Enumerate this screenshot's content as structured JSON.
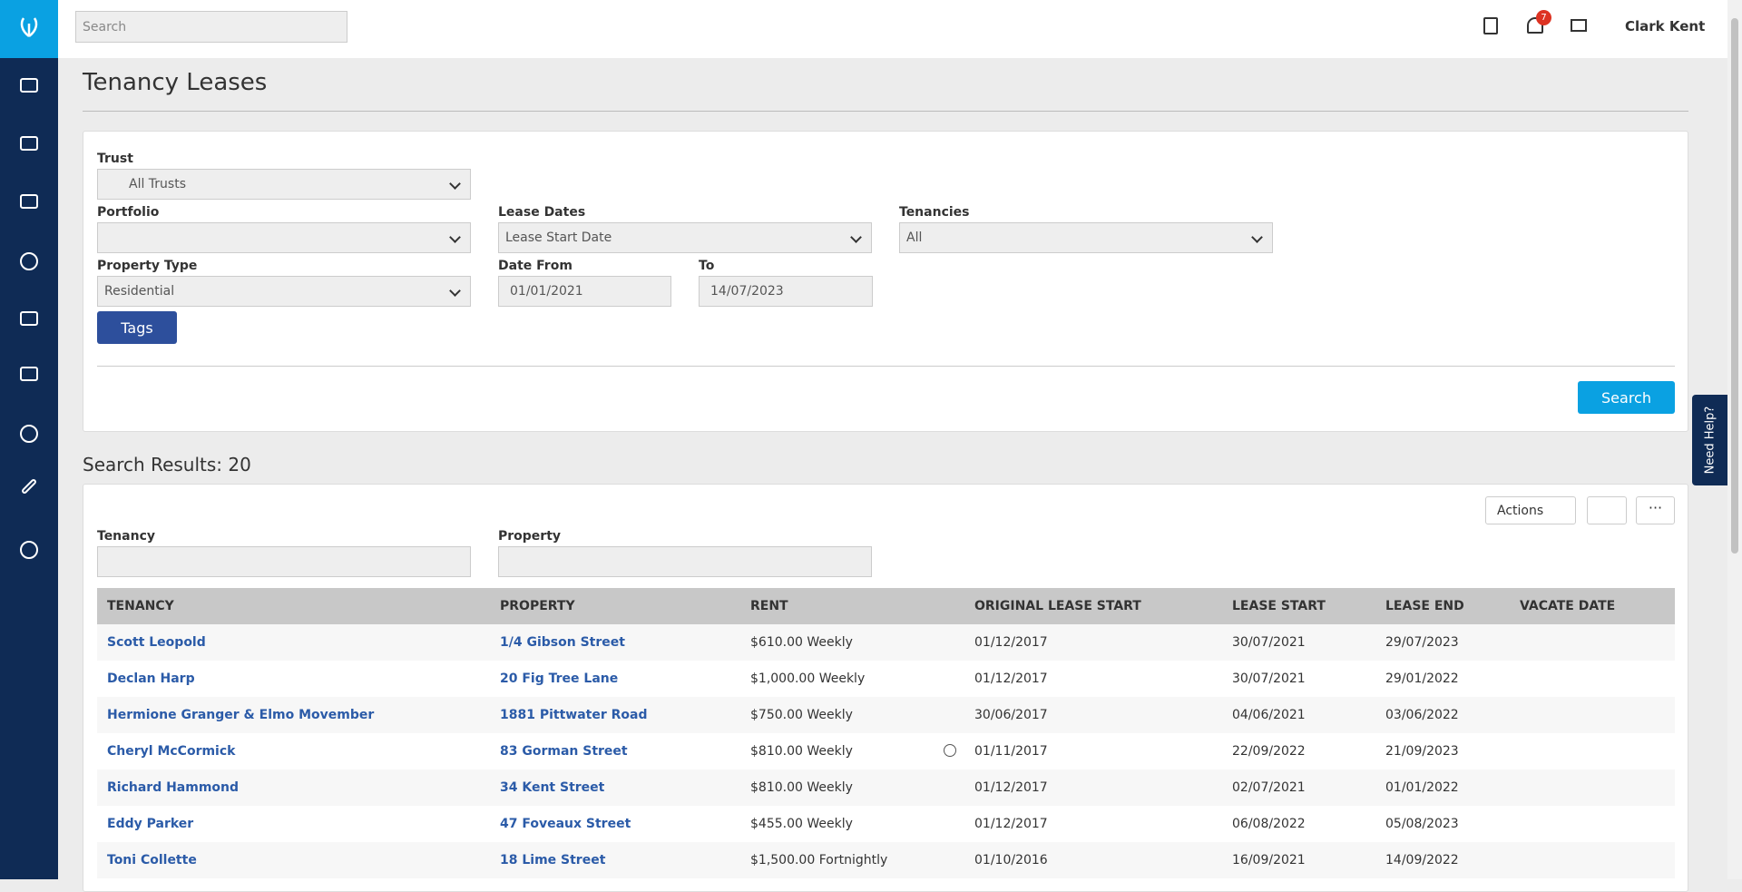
{
  "header": {
    "search_placeholder": "Search",
    "notifications": "7",
    "user": "Clark Kent"
  },
  "page": {
    "title": "Tenancy Leases"
  },
  "filters": {
    "trust": {
      "label": "Trust",
      "value": "All Trusts"
    },
    "portfolio": {
      "label": "Portfolio"
    },
    "lease_dates": {
      "label": "Lease Dates",
      "value": "Lease Start Date"
    },
    "tenancies": {
      "label": "Tenancies",
      "value": "All"
    },
    "property_type": {
      "label": "Property Type",
      "value": "Residential"
    },
    "date_from": {
      "label": "Date From",
      "value": "01/01/2021"
    },
    "date_to": {
      "label": "To",
      "value": "14/07/2023"
    },
    "tags_button": "Tags",
    "search_button": "Search"
  },
  "results": {
    "heading": "Search Results: 20",
    "actions": "Actions",
    "filters": {
      "tenancy": "Tenancy",
      "property": "Property"
    }
  },
  "table": {
    "columns": [
      "TENANCY",
      "PROPERTY",
      "RENT",
      "ORIGINAL LEASE START",
      "LEASE START",
      "LEASE END",
      "VACATE DATE"
    ],
    "rows": [
      [
        "Scott Leopold",
        "1/4 Gibson Street",
        "$610.00 Weekly",
        "01/12/2017",
        "30/07/2021",
        "29/07/2023"
      ],
      [
        "Declan Harp",
        "20 Fig Tree Lane",
        "$1,000.00 Weekly",
        "01/12/2017",
        "30/07/2021",
        "29/01/2022"
      ],
      [
        "Hermione Granger & Elmo Movember",
        "1881 Pittwater Road",
        "$750.00 Weekly",
        "30/06/2017",
        "04/06/2021",
        "03/06/2022"
      ],
      [
        "Cheryl McCormick",
        "83 Gorman Street",
        "$810.00 Weekly",
        "01/11/2017",
        "22/09/2022",
        "21/09/2023"
      ],
      [
        "Richard Hammond",
        "34 Kent Street",
        "$810.00 Weekly",
        "01/12/2017",
        "02/07/2021",
        "01/01/2022"
      ],
      [
        "Eddy Parker",
        "47 Foveaux Street",
        "$455.00 Weekly",
        "01/12/2017",
        "06/08/2022",
        "05/08/2023"
      ],
      [
        "Toni Collette",
        "18 Lime Street",
        "$1,500.00 Fortnightly",
        "01/10/2016",
        "16/09/2021",
        "14/09/2022"
      ]
    ]
  },
  "help": "Need Help?"
}
